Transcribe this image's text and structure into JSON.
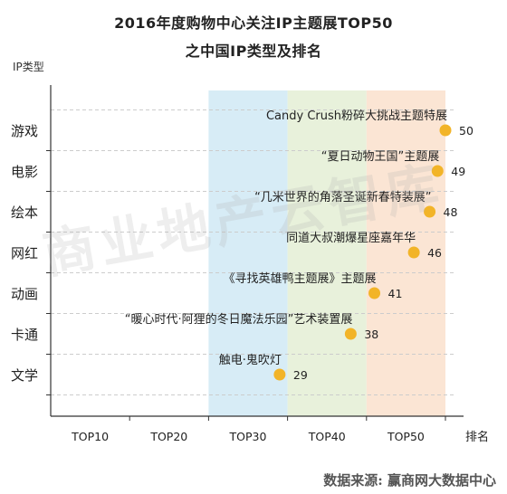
{
  "title_line1": "2016年度购物中心关注IP主题展TOP50",
  "title_line2": "之中国IP类型及排名",
  "source": "数据来源: 赢商网大数据中心",
  "watermark": "商业地产云智库",
  "colors": {
    "point": "#f2b428",
    "band_top30": "#d7ecf6",
    "band_top40": "#e8f1db",
    "band_top50": "#fbe5d4",
    "gridline": "#cccccc",
    "axis": "#333333"
  },
  "chart_data": {
    "type": "scatter",
    "ylabel": "IP类型",
    "xlabel": "排名",
    "x_tick_labels": [
      "TOP10",
      "TOP20",
      "TOP30",
      "TOP40",
      "TOP50"
    ],
    "xlim": [
      0,
      50
    ],
    "categories": [
      "游戏",
      "电影",
      "绘本",
      "网红",
      "动画",
      "卡通",
      "文学"
    ],
    "highlight_bands": [
      "TOP30",
      "TOP40",
      "TOP50"
    ],
    "points": [
      {
        "category": "游戏",
        "value": 50,
        "label": "Candy Crush粉碎大挑战主题特展"
      },
      {
        "category": "电影",
        "value": 49,
        "label": "“夏日动物王国”主题展"
      },
      {
        "category": "绘本",
        "value": 48,
        "label": "“几米世界的角落圣诞新春特装展”"
      },
      {
        "category": "网红",
        "value": 46,
        "label": "同道大叔潮爆星座嘉年华"
      },
      {
        "category": "动画",
        "value": 41,
        "label": "《寻找英雄鸭主题展》主题展"
      },
      {
        "category": "卡通",
        "value": 38,
        "label": "“暖心时代·阿狸的冬日魔法乐园”艺术装置展"
      },
      {
        "category": "文学",
        "value": 29,
        "label": "触电·鬼吹灯"
      }
    ]
  }
}
